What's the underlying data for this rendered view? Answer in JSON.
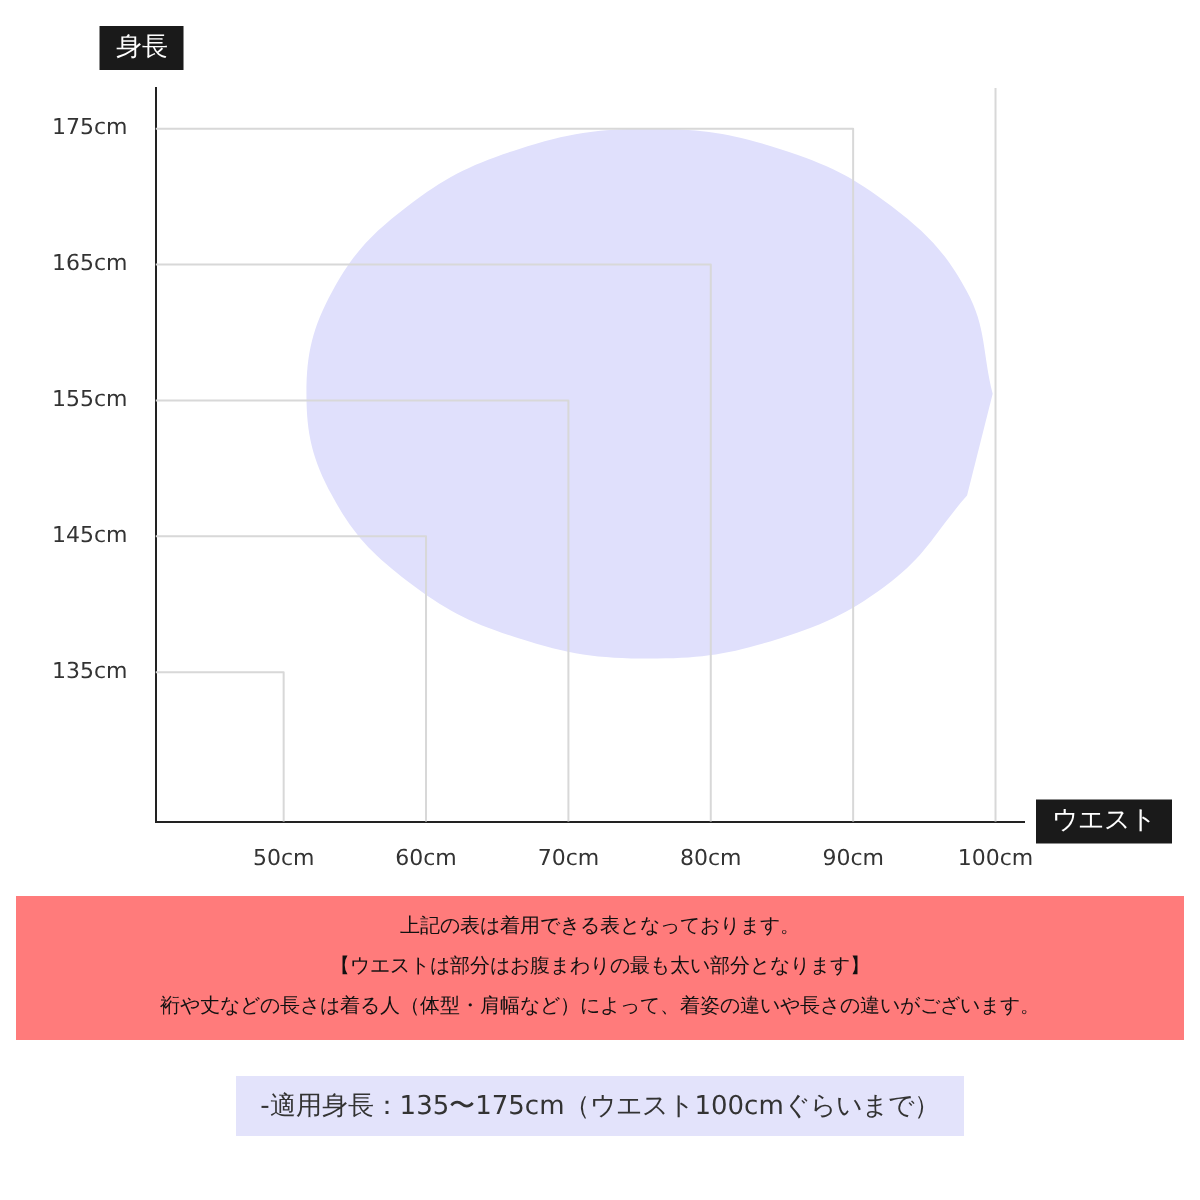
{
  "chart_data": {
    "type": "line",
    "xlabel": "ウエスト",
    "ylabel": "身長",
    "xlim": [
      41,
      102
    ],
    "ylim": [
      124,
      178
    ],
    "xticks": [
      {
        "value": 50,
        "label": "50cm"
      },
      {
        "value": 60,
        "label": "60cm"
      },
      {
        "value": 70,
        "label": "70cm"
      },
      {
        "value": 80,
        "label": "80cm"
      },
      {
        "value": 90,
        "label": "90cm"
      },
      {
        "value": 100,
        "label": "100cm"
      }
    ],
    "yticks": [
      {
        "value": 135,
        "label": "135cm"
      },
      {
        "value": 145,
        "label": "145cm"
      },
      {
        "value": 155,
        "label": "155cm"
      },
      {
        "value": 165,
        "label": "165cm"
      },
      {
        "value": 175,
        "label": "175cm"
      }
    ],
    "series": [
      {
        "type": "area",
        "color": "#e0e0fc",
        "x": [
          99.8,
          98.0,
          92.7,
          84.9,
          75.7,
          66.5,
          58.7,
          53.4,
          51.6,
          53.4,
          58.7,
          66.5,
          75.7,
          84.9,
          92.7,
          98.0
        ],
        "values": [
          155.5,
          163.0,
          169.3,
          173.5,
          175.0,
          173.5,
          169.3,
          163.0,
          155.5,
          148.0,
          141.7,
          137.5,
          136.0,
          137.5,
          141.7,
          148.0
        ]
      },
      {
        "type": "line",
        "color": "#d8d8d8",
        "x": [
          41,
          50,
          50
        ],
        "values": [
          135,
          135,
          124
        ]
      },
      {
        "type": "line",
        "color": "#d8d8d8",
        "x": [
          41,
          60,
          60
        ],
        "values": [
          145,
          145,
          124
        ]
      },
      {
        "type": "line",
        "color": "#d8d8d8",
        "x": [
          41,
          70,
          70
        ],
        "values": [
          155,
          155,
          124
        ]
      },
      {
        "type": "line",
        "color": "#d8d8d8",
        "x": [
          41,
          80,
          80
        ],
        "values": [
          165,
          165,
          124
        ]
      },
      {
        "type": "line",
        "color": "#d8d8d8",
        "x": [
          41,
          90,
          90
        ],
        "values": [
          175,
          175,
          124
        ]
      }
    ],
    "ref_lines": [
      {
        "axis": "x",
        "value": 100,
        "color": "#d8d8d8"
      }
    ],
    "marker": "none",
    "grid": false,
    "legend": false,
    "annotations": [
      "上記の表は着用できる表となっております。",
      "【ウエストは部分はお腹まわりの最も太い部分となります】",
      "裄や丈などの長さは着る人（体型・肩幅など）によって、着姿の違いや長さの違いがございます。",
      "-適用身長：135〜175cm（ウエスト100cmぐらいまで）"
    ]
  }
}
